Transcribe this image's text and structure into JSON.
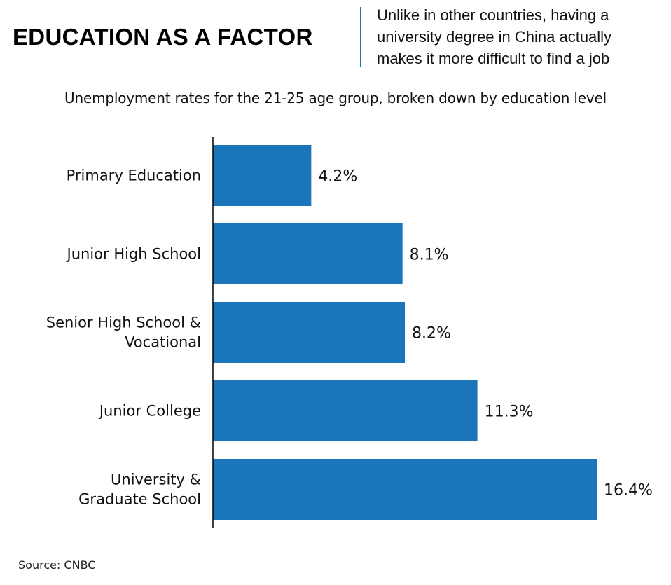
{
  "header": {
    "title": "EDUCATION AS A FACTOR",
    "subhead_lines": [
      "Unlike in other countries, having a",
      "university degree in China actually",
      "makes it more difficult to find a job"
    ],
    "divider_color": "#1b75bb"
  },
  "chart_data": {
    "type": "bar",
    "orientation": "horizontal",
    "title": "EDUCATION AS A FACTOR",
    "subtitle": "Unemployment rates for the 21-25 age group, broken down by education level",
    "categories": [
      [
        "Primary Education"
      ],
      [
        "Junior High School"
      ],
      [
        "Senior High School &",
        "Vocational"
      ],
      [
        "Junior College"
      ],
      [
        "University &",
        "Graduate School"
      ]
    ],
    "values": [
      4.2,
      8.1,
      8.2,
      11.3,
      16.4
    ],
    "value_labels": [
      "4.2%",
      "8.1%",
      "8.2%",
      "11.3%",
      "16.4%"
    ],
    "unit": "%",
    "xlim": [
      0,
      16.4
    ],
    "grid": false,
    "legend": "none",
    "bar_color": "#1b75bb",
    "axis_color": "#000000"
  },
  "footer": {
    "source": "Source: CNBC"
  }
}
